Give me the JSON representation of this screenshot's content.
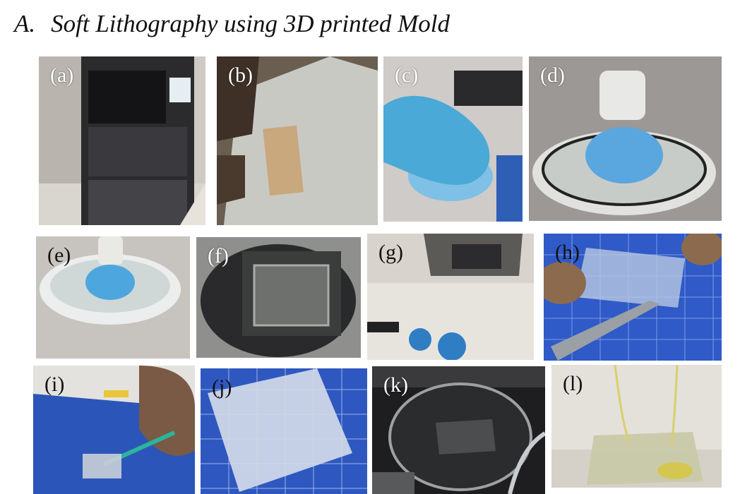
{
  "title": {
    "number": "A.",
    "text": "Soft Lithography using 3D printed Mold"
  },
  "panels": [
    {
      "id": "a",
      "label": "(a)"
    },
    {
      "id": "b",
      "label": "(b)"
    },
    {
      "id": "c",
      "label": "(c)"
    },
    {
      "id": "d",
      "label": "(d)"
    },
    {
      "id": "e",
      "label": "(e)"
    },
    {
      "id": "f",
      "label": "(f)"
    },
    {
      "id": "g",
      "label": "(g)"
    },
    {
      "id": "h",
      "label": "(h)"
    },
    {
      "id": "i",
      "label": "(i)"
    },
    {
      "id": "j",
      "label": "(j)"
    },
    {
      "id": "k",
      "label": "(k)"
    },
    {
      "id": "l",
      "label": "(l)"
    }
  ]
}
